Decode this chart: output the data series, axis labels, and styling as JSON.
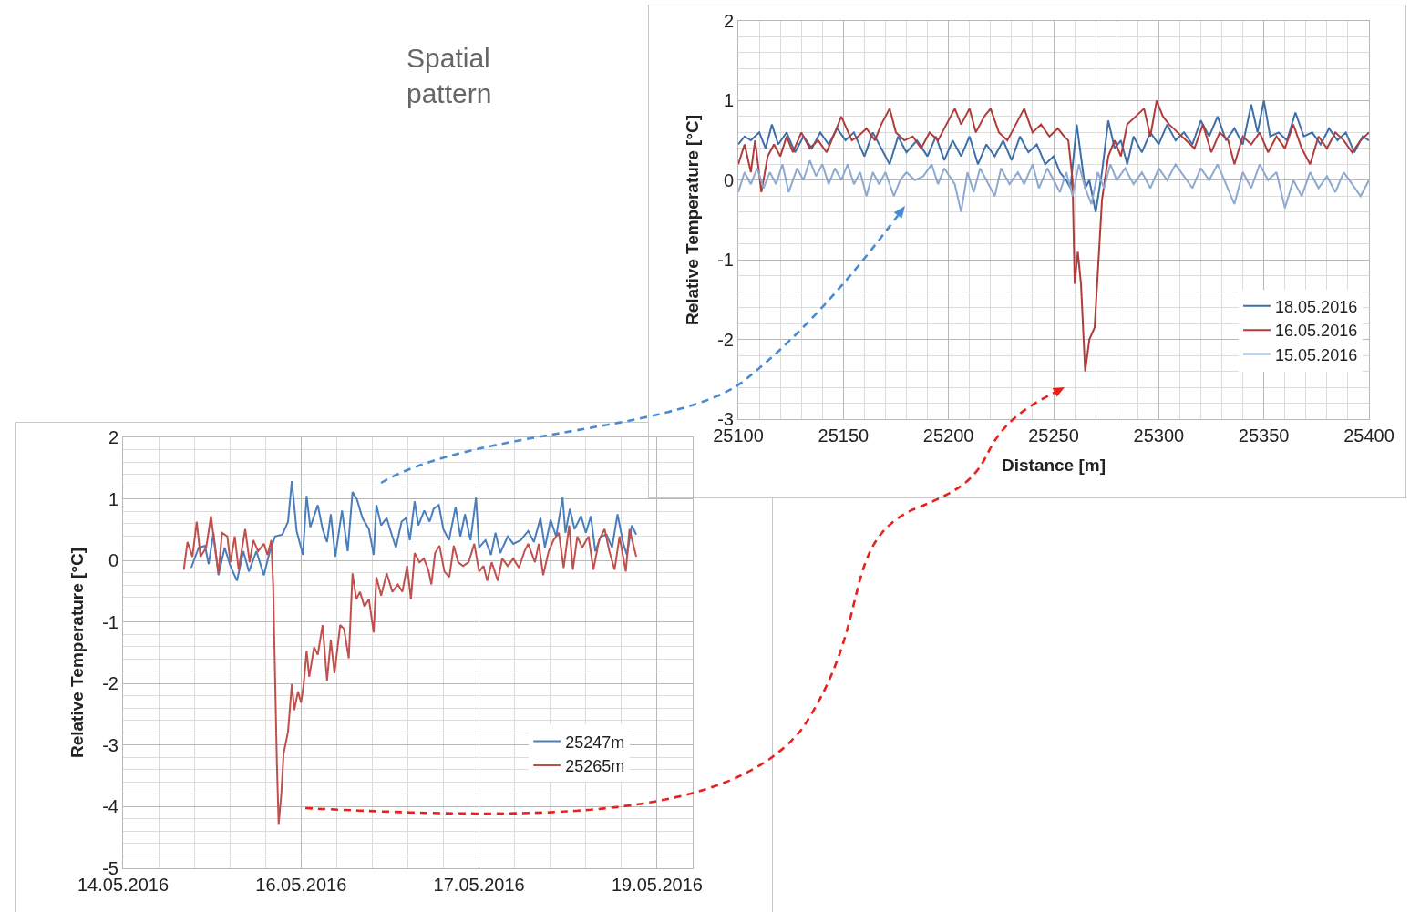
{
  "chart_data": [
    {
      "type": "line",
      "xlabel": "Distance [m]",
      "ylabel": "Relative Temperature [°C]",
      "annotations": [
        "Spatial\npattern"
      ],
      "xlim": [
        25100,
        25400
      ],
      "ylim": [
        -3,
        2
      ],
      "xticks": [
        25100,
        25150,
        25200,
        25250,
        25300,
        25350,
        25400
      ],
      "yticks": [
        -3,
        -2,
        -1,
        0,
        1,
        2
      ],
      "grid": true,
      "legend": "bottom right",
      "series": [
        {
          "name": "18.05.2016",
          "color": "#3d6fa8",
          "x": [
            25100,
            25103,
            25106,
            25110,
            25113,
            25116,
            25119,
            25123,
            25127,
            25131,
            25135,
            25139,
            25143,
            25147,
            25151,
            25155,
            25160,
            25164,
            25168,
            25172,
            25176,
            25180,
            25185,
            25190,
            25194,
            25198,
            25202,
            25206,
            25210,
            25214,
            25218,
            25222,
            25226,
            25230,
            25234,
            25238,
            25242,
            25246,
            25250,
            25253,
            25256,
            25258,
            25261,
            25263,
            25265,
            25267,
            25270,
            25273,
            25276,
            25279,
            25282,
            25285,
            25288,
            25292,
            25296,
            25300,
            25304,
            25308,
            25312,
            25316,
            25320,
            25324,
            25328,
            25332,
            25336,
            25340,
            25344,
            25347,
            25350,
            25353,
            25357,
            25361,
            25365,
            25369,
            25373,
            25377,
            25381,
            25385,
            25389,
            25393,
            25397,
            25400
          ],
          "values": [
            0.45,
            0.55,
            0.5,
            0.6,
            0.4,
            0.7,
            0.45,
            0.6,
            0.35,
            0.55,
            0.4,
            0.6,
            0.45,
            0.65,
            0.5,
            0.6,
            0.3,
            0.6,
            0.4,
            0.2,
            0.55,
            0.35,
            0.5,
            0.3,
            0.55,
            0.25,
            0.5,
            0.3,
            0.55,
            0.2,
            0.45,
            0.3,
            0.5,
            0.25,
            0.55,
            0.35,
            0.45,
            0.2,
            0.3,
            0.1,
            0.0,
            -0.1,
            0.7,
            0.3,
            -0.1,
            0.0,
            -0.4,
            0.1,
            0.75,
            0.4,
            0.5,
            0.2,
            0.55,
            0.35,
            0.6,
            0.45,
            0.7,
            0.5,
            0.6,
            0.45,
            0.75,
            0.55,
            0.8,
            0.5,
            0.65,
            0.45,
            0.95,
            0.6,
            1.0,
            0.55,
            0.6,
            0.5,
            0.85,
            0.55,
            0.6,
            0.45,
            0.65,
            0.5,
            0.6,
            0.35,
            0.55,
            0.5
          ]
        },
        {
          "name": "16.05.2016",
          "color": "#b13c3c",
          "x": [
            25100,
            25103,
            25106,
            25108,
            25111,
            25114,
            25117,
            25120,
            25123,
            25126,
            25130,
            25134,
            25138,
            25142,
            25146,
            25149,
            25154,
            25157,
            25161,
            25165,
            25168,
            25172,
            25175,
            25179,
            25183,
            25187,
            25191,
            25195,
            25199,
            25203,
            25206,
            25210,
            25213,
            25217,
            25220,
            25224,
            25228,
            25232,
            25236,
            25240,
            25244,
            25248,
            25252,
            25255,
            25257,
            25259,
            25260,
            25261.5,
            25263,
            25265,
            25267,
            25269.5,
            25273,
            25276,
            25279,
            25282,
            25285,
            25289,
            25293,
            25296,
            25299,
            25302,
            25305,
            25309,
            25313,
            25317,
            25321,
            25325,
            25329,
            25333,
            25336,
            25340,
            25344,
            25348,
            25352,
            25356,
            25360,
            25364,
            25368,
            25372,
            25376,
            25380,
            25384,
            25388,
            25392,
            25396,
            25400
          ],
          "values": [
            0.2,
            0.45,
            0.1,
            0.5,
            -0.15,
            0.3,
            0.45,
            0.3,
            0.55,
            0.35,
            0.6,
            0.4,
            0.5,
            0.35,
            0.6,
            0.8,
            0.5,
            0.55,
            0.65,
            0.5,
            0.7,
            0.9,
            0.6,
            0.5,
            0.55,
            0.4,
            0.6,
            0.5,
            0.7,
            0.9,
            0.7,
            0.9,
            0.6,
            0.8,
            0.9,
            0.6,
            0.5,
            0.7,
            0.9,
            0.6,
            0.7,
            0.55,
            0.65,
            0.55,
            0.5,
            0.0,
            -1.3,
            -0.9,
            -1.3,
            -2.4,
            -2.0,
            -1.85,
            -0.25,
            0.3,
            0.5,
            0.3,
            0.7,
            0.8,
            0.9,
            0.55,
            1.0,
            0.8,
            0.7,
            0.6,
            0.5,
            0.4,
            0.7,
            0.35,
            0.6,
            0.5,
            0.2,
            0.55,
            0.45,
            0.6,
            0.35,
            0.55,
            0.4,
            0.7,
            0.4,
            0.2,
            0.55,
            0.4,
            0.6,
            0.5,
            0.35,
            0.5,
            0.6
          ]
        },
        {
          "name": "15.05.2016",
          "color": "#8eaad0",
          "x": [
            25100,
            25103,
            25106,
            25109,
            25112,
            25115,
            25118,
            25121,
            25124,
            25128,
            25131,
            25134,
            25137,
            25140,
            25143,
            25146,
            25149,
            25152,
            25155,
            25158,
            25161,
            25164,
            25167,
            25170,
            25174,
            25177,
            25180,
            25184,
            25188,
            25192,
            25195,
            25198,
            25203,
            25206,
            25209,
            25212,
            25215,
            25218,
            25222,
            25225,
            25229,
            25233,
            25236,
            25240,
            25243,
            25247,
            25250,
            25253,
            25256,
            25259,
            25262,
            25265,
            25268,
            25271,
            25274,
            25277,
            25280,
            25284,
            25288,
            25292,
            25296,
            25300,
            25304,
            25308,
            25312,
            25316,
            25320,
            25324,
            25328,
            25332,
            25336,
            25340,
            25344,
            25348,
            25352,
            25356,
            25360,
            25364,
            25368,
            25372,
            25376,
            25380,
            25384,
            25388,
            25392,
            25396,
            25400
          ],
          "values": [
            -0.15,
            0.1,
            -0.05,
            0.15,
            -0.1,
            0.1,
            -0.05,
            0.2,
            -0.15,
            0.15,
            0.0,
            0.25,
            0.05,
            0.2,
            -0.05,
            0.15,
            0.0,
            0.2,
            -0.05,
            0.1,
            -0.2,
            0.1,
            -0.05,
            0.1,
            -0.2,
            0.0,
            0.1,
            0.0,
            0.05,
            0.2,
            -0.05,
            0.15,
            -0.05,
            -0.4,
            0.1,
            -0.15,
            0.15,
            0.0,
            -0.2,
            0.15,
            -0.05,
            0.1,
            -0.05,
            0.2,
            -0.1,
            0.15,
            0.0,
            -0.15,
            0.1,
            -0.2,
            0.2,
            -0.1,
            -0.3,
            0.1,
            -0.1,
            0.2,
            0.0,
            0.15,
            -0.05,
            0.1,
            -0.1,
            0.15,
            0.0,
            0.2,
            0.05,
            -0.1,
            0.15,
            0.0,
            0.2,
            -0.05,
            -0.3,
            0.1,
            -0.1,
            0.2,
            0.0,
            0.1,
            -0.35,
            0.0,
            -0.2,
            0.1,
            -0.1,
            0.05,
            -0.15,
            0.1,
            -0.05,
            -0.2,
            0.0
          ]
        }
      ]
    },
    {
      "type": "line",
      "ylabel": "Relative Temperature [°C]",
      "xlim": [
        "2016-05-14T12:00",
        "2016-05-19T07:12"
      ],
      "ylim": [
        -5,
        2
      ],
      "xticks": [
        {
          "value": "2016-05-14T12:00",
          "label": "14.05.2016"
        },
        {
          "value": "2016-05-16T00:00",
          "label": "16.05.2016"
        },
        {
          "value": "2016-05-17T12:00",
          "label": "17.05.2016"
        },
        {
          "value": "2016-05-19T00:00",
          "label": "19.05.2016"
        }
      ],
      "yticks": [
        -5,
        -4,
        -3,
        -2,
        -1,
        0,
        1,
        2
      ],
      "grid": true,
      "legend": "bottom right",
      "series": [
        {
          "name": "25247m",
          "color": "#4a7ebb",
          "x": [
            "2016-05-15T01:47",
            "2016-05-15T03:18",
            "2016-05-15T04:34",
            "2016-05-15T05:19",
            "2016-05-15T06:17",
            "2016-05-15T07:18",
            "2016-05-15T08:33",
            "2016-05-15T09:42",
            "2016-05-15T11:02",
            "2016-05-15T12:20",
            "2016-05-15T13:27",
            "2016-05-15T14:58",
            "2016-05-15T16:29",
            "2016-05-15T17:36",
            "2016-05-15T18:45",
            "2016-05-15T20:13",
            "2016-05-15T21:22",
            "2016-05-15T22:08",
            "2016-05-15T23:06",
            "2016-05-16T00:22",
            "2016-05-16T01:07",
            "2016-05-16T01:52",
            "2016-05-16T03:23",
            "2016-05-16T04:21",
            "2016-05-16T05:15",
            "2016-05-16T06:01",
            "2016-05-16T06:55",
            "2016-05-16T08:17",
            "2016-05-16T09:26",
            "2016-05-16T10:24",
            "2016-05-16T11:18",
            "2016-05-16T12:25",
            "2016-05-16T13:43",
            "2016-05-16T14:41",
            "2016-05-16T15:14",
            "2016-05-16T16:12",
            "2016-05-16T17:19",
            "2016-05-16T18:13",
            "2016-05-16T19:11",
            "2016-05-16T20:20",
            "2016-05-16T21:14",
            "2016-05-16T22:00",
            "2016-05-16T22:58",
            "2016-05-16T23:43",
            "2016-05-17T00:55",
            "2016-05-17T02:00",
            "2016-05-17T02:49",
            "2016-05-17T03:52",
            "2016-05-17T04:46",
            "2016-05-17T05:55",
            "2016-05-17T07:15",
            "2016-05-17T08:13",
            "2016-05-17T09:09",
            "2016-05-17T10:16",
            "2016-05-17T11:23",
            "2016-05-17T12:00",
            "2016-05-17T13:18",
            "2016-05-17T14:25",
            "2016-05-17T15:19",
            "2016-05-17T16:17",
            "2016-05-17T17:48",
            "2016-05-17T18:55",
            "2016-05-17T20:25",
            "2016-05-17T21:56",
            "2016-05-17T23:05",
            "2016-05-18T00:25",
            "2016-05-18T01:19",
            "2016-05-18T02:28",
            "2016-05-18T03:35",
            "2016-05-18T04:53",
            "2016-05-18T05:28",
            "2016-05-18T06:22",
            "2016-05-18T07:18",
            "2016-05-18T08:38",
            "2016-05-18T09:36",
            "2016-05-18T10:36",
            "2016-05-18T11:30",
            "2016-05-18T12:37",
            "2016-05-18T13:47",
            "2016-05-18T14:54",
            "2016-05-18T16:00",
            "2016-05-18T17:10",
            "2016-05-18T17:55",
            "2016-05-18T18:53",
            "2016-05-18T19:47"
          ],
          "values": [
            -0.12,
            0.21,
            0.24,
            -0.06,
            0.45,
            -0.24,
            0.21,
            -0.09,
            -0.33,
            0.15,
            -0.18,
            0.15,
            -0.24,
            0.12,
            0.39,
            0.42,
            0.63,
            1.29,
            0.48,
            0.09,
            1.05,
            0.54,
            0.9,
            0.51,
            0.3,
            0.75,
            0.06,
            0.81,
            0.15,
            1.11,
            0.99,
            0.69,
            0.51,
            0.09,
            0.9,
            0.57,
            0.69,
            0.45,
            0.21,
            0.63,
            0.69,
            0.33,
            0.96,
            0.57,
            0.81,
            0.63,
            0.84,
            0.9,
            0.51,
            0.33,
            0.87,
            0.39,
            0.75,
            0.33,
            1.02,
            0.21,
            0.33,
            0.09,
            0.45,
            0.12,
            0.39,
            0.27,
            0.33,
            0.48,
            0.3,
            0.69,
            0.21,
            0.66,
            0.39,
            1.02,
            0.45,
            0.84,
            0.51,
            0.72,
            0.45,
            0.72,
            0.15,
            0.39,
            0.42,
            0.21,
            0.75,
            0.27,
            0.09,
            0.57,
            0.42
          ]
        },
        {
          "name": "25265m",
          "color": "#c0504d",
          "x": [
            "2016-05-15T00:17",
            "2016-05-15T01:02",
            "2016-05-15T02:02",
            "2016-05-15T02:54",
            "2016-05-15T03:40",
            "2016-05-15T04:49",
            "2016-05-15T05:47",
            "2016-05-15T06:41",
            "2016-05-15T07:18",
            "2016-05-15T08:01",
            "2016-05-15T09:06",
            "2016-05-15T09:42",
            "2016-05-15T10:36",
            "2016-05-15T11:22",
            "2016-05-15T12:42",
            "2016-05-15T13:36",
            "2016-05-15T14:21",
            "2016-05-15T15:19",
            "2016-05-15T16:29",
            "2016-05-15T17:14",
            "2016-05-15T17:59",
            "2016-05-15T18:21",
            "2016-05-15T19:06",
            "2016-05-15T19:28",
            "2016-05-15T20:00",
            "2016-05-15T20:28",
            "2016-05-15T21:22",
            "2016-05-15T22:08",
            "2016-05-15T22:38",
            "2016-05-15T23:23",
            "2016-05-16T00:00",
            "2016-05-16T00:32",
            "2016-05-16T01:07",
            "2016-05-16T01:39",
            "2016-05-16T02:38",
            "2016-05-16T03:23",
            "2016-05-16T04:21",
            "2016-05-16T05:15",
            "2016-05-16T06:01",
            "2016-05-16T06:46",
            "2016-05-16T07:55",
            "2016-05-16T08:41",
            "2016-05-16T09:39",
            "2016-05-16T10:24",
            "2016-05-16T11:10",
            "2016-05-16T11:55",
            "2016-05-16T12:49",
            "2016-05-16T13:43",
            "2016-05-16T14:41",
            "2016-05-16T15:14",
            "2016-05-16T16:12",
            "2016-05-16T17:19",
            "2016-05-16T18:28",
            "2016-05-16T19:35",
            "2016-05-16T20:29",
            "2016-05-16T21:27",
            "2016-05-16T22:13",
            "2016-05-16T22:58",
            "2016-05-16T23:56",
            "2016-05-17T00:50",
            "2016-05-17T01:44",
            "2016-05-17T02:21",
            "2016-05-17T03:06",
            "2016-05-17T04:00",
            "2016-05-17T04:59",
            "2016-05-17T05:59",
            "2016-05-17T06:53",
            "2016-05-17T07:47",
            "2016-05-17T08:46",
            "2016-05-17T09:53",
            "2016-05-17T11:02",
            "2016-05-17T12:00",
            "2016-05-17T12:54",
            "2016-05-17T13:39",
            "2016-05-17T14:33",
            "2016-05-17T15:47",
            "2016-05-17T16:41",
            "2016-05-17T17:48",
            "2016-05-17T18:55",
            "2016-05-17T20:04",
            "2016-05-17T21:11",
            "2016-05-17T21:56",
            "2016-05-17T23:18",
            "2016-05-18T00:04",
            "2016-05-18T00:58",
            "2016-05-18T02:05",
            "2016-05-18T03:03",
            "2016-05-18T04:08",
            "2016-05-18T05:06",
            "2016-05-18T06:13",
            "2016-05-18T06:58",
            "2016-05-18T07:52",
            "2016-05-18T08:51",
            "2016-05-18T10:08",
            "2016-05-18T11:07",
            "2016-05-18T12:16",
            "2016-05-18T13:23",
            "2016-05-18T14:21",
            "2016-05-18T15:24",
            "2016-05-18T16:24",
            "2016-05-18T17:40",
            "2016-05-18T18:25",
            "2016-05-18T19:47"
          ],
          "values": [
            -0.15,
            0.3,
            0.06,
            0.63,
            0.06,
            0.21,
            0.72,
            0.15,
            -0.21,
            0.45,
            0.39,
            -0.03,
            0.39,
            -0.15,
            0.51,
            -0.03,
            0.33,
            0.15,
            0.27,
            0.09,
            0.33,
            -0.39,
            -3.26,
            -4.28,
            -3.8,
            -3.14,
            -2.78,
            -2.01,
            -2.43,
            -2.13,
            -2.31,
            -2.01,
            -1.47,
            -1.89,
            -1.41,
            -1.53,
            -1.05,
            -1.95,
            -1.29,
            -1.83,
            -1.05,
            -1.11,
            -1.59,
            -0.21,
            -0.63,
            -0.51,
            -0.75,
            -0.63,
            -1.17,
            -0.27,
            -0.57,
            -0.21,
            -0.51,
            -0.39,
            -0.51,
            -0.09,
            -0.63,
            0.12,
            -0.03,
            0.03,
            -0.15,
            -0.39,
            0.12,
            0.24,
            -0.18,
            -0.27,
            0.24,
            -0.03,
            -0.09,
            -0.03,
            0.27,
            -0.18,
            -0.09,
            -0.33,
            -0.03,
            -0.33,
            0.03,
            -0.09,
            0.03,
            -0.12,
            0.15,
            0.27,
            -0.03,
            0.27,
            -0.24,
            0.15,
            0.33,
            0.45,
            -0.12,
            0.57,
            -0.15,
            0.39,
            0.21,
            0.39,
            -0.15,
            0.33,
            0.51,
            0.15,
            -0.15,
            0.39,
            -0.18,
            0.51,
            0.06
          ]
        }
      ]
    }
  ]
}
